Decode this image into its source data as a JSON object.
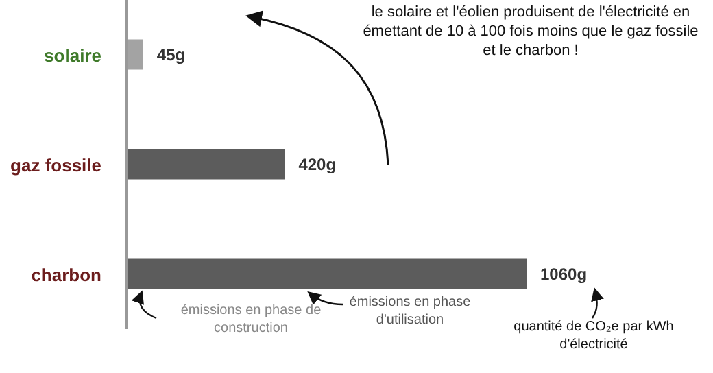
{
  "chart_data": {
    "type": "bar",
    "orientation": "horizontal",
    "categories": [
      "solaire",
      "gaz fossile",
      "charbon"
    ],
    "values": [
      45,
      420,
      1060
    ],
    "colors": [
      "#a3a3a3",
      "#5c5c5c",
      "#5c5c5c"
    ],
    "value_labels": [
      "45g",
      "420g",
      "1060g"
    ],
    "annotations": [
      "le solaire et l'éolien produisent de l'électricité en émettant de 10 à 100 fois moins que le gaz fossile et le charbon !",
      "quantité de CO₂e par kWh d'électricité",
      "émissions en phase de construction",
      "émissions en phase d'utilisation"
    ]
  }
}
